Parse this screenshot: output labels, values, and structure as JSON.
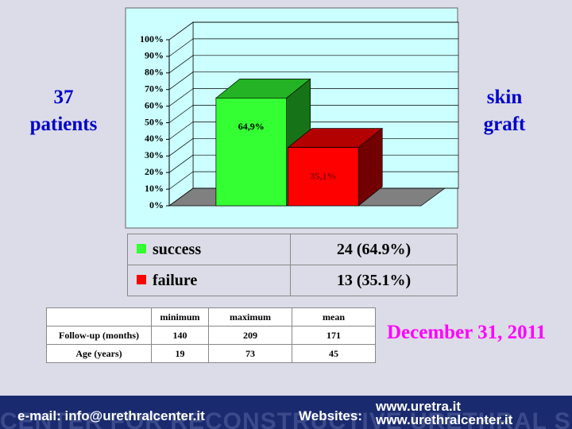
{
  "chart_data": {
    "type": "bar",
    "categories": [
      null,
      null
    ],
    "values": [
      64.9,
      35.1
    ],
    "value_labels": [
      "64,9%",
      "35,1%"
    ],
    "colors": [
      "#33ff33",
      "#ff0000"
    ],
    "ylim": [
      0,
      100
    ],
    "yticks": [
      {
        "value": 0,
        "label": "0%"
      },
      {
        "value": 10,
        "label": "10%"
      },
      {
        "value": 20,
        "label": "20%"
      },
      {
        "value": 30,
        "label": "30%"
      },
      {
        "value": 40,
        "label": "40%"
      },
      {
        "value": 50,
        "label": "50%"
      },
      {
        "value": 60,
        "label": "60%"
      },
      {
        "value": 70,
        "label": "70%"
      },
      {
        "value": 80,
        "label": "80%"
      },
      {
        "value": 90,
        "label": "90%"
      },
      {
        "value": 100,
        "label": "100%"
      }
    ],
    "grid": true
  },
  "left_label": [
    "37",
    "patients"
  ],
  "right_label": [
    "skin",
    "graft"
  ],
  "legend": [
    {
      "label": "success",
      "value": "24 (64.9%)"
    },
    {
      "label": "failure",
      "value": "13 (35.1%)"
    }
  ],
  "stats_table": {
    "header": [
      "minimum",
      "maximum",
      "mean"
    ],
    "rows": [
      [
        "Follow-up (months)",
        140,
        209,
        171
      ],
      [
        "Age (years)",
        19,
        73,
        45
      ]
    ]
  },
  "date": "December 31, 2011",
  "footer": {
    "watermark": "CENTER FOR RECONSTRUCTIVE URETHRAL SURGERY",
    "email": "e-mail: info@urethralcenter.it",
    "websites_label": "Websites:",
    "websites": [
      "www.uretra.it",
      "www.urethralcenter.it"
    ]
  }
}
